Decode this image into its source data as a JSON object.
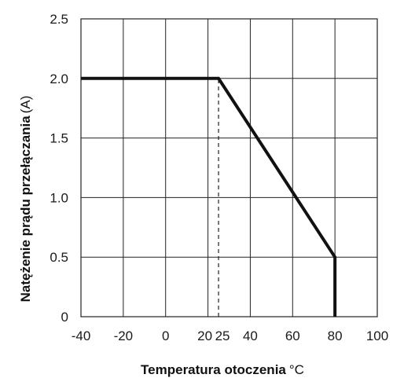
{
  "chart_data": {
    "type": "line",
    "xlabel": "Temperatura otoczenia",
    "xlabel_unit": "°C",
    "ylabel": "Natężenie prądu przełączania",
    "ylabel_unit": "(A)",
    "xlim": [
      -40,
      100
    ],
    "ylim": [
      0,
      2.5
    ],
    "x_ticks": [
      -40,
      -20,
      0,
      20,
      25,
      40,
      60,
      80,
      100
    ],
    "x_tick_labels": [
      "-40",
      "-20",
      "0",
      "20",
      "25",
      "40",
      "60",
      "80",
      "100"
    ],
    "x_grid": [
      -40,
      -20,
      0,
      20,
      40,
      60,
      80,
      100
    ],
    "y_ticks": [
      0,
      0.5,
      1.0,
      1.5,
      2.0,
      2.5
    ],
    "y_tick_labels": [
      "0",
      "0.5",
      "1.0",
      "1.5",
      "2.0",
      "2.5"
    ],
    "grid": true,
    "series": [
      {
        "x": [
          -40,
          25,
          80,
          80
        ],
        "y": [
          2.0,
          2.0,
          0.5,
          0
        ],
        "style": "solid"
      }
    ],
    "reference_lines": [
      {
        "x": [
          25,
          25
        ],
        "y": [
          0,
          2.0
        ],
        "style": "dashed"
      }
    ]
  }
}
